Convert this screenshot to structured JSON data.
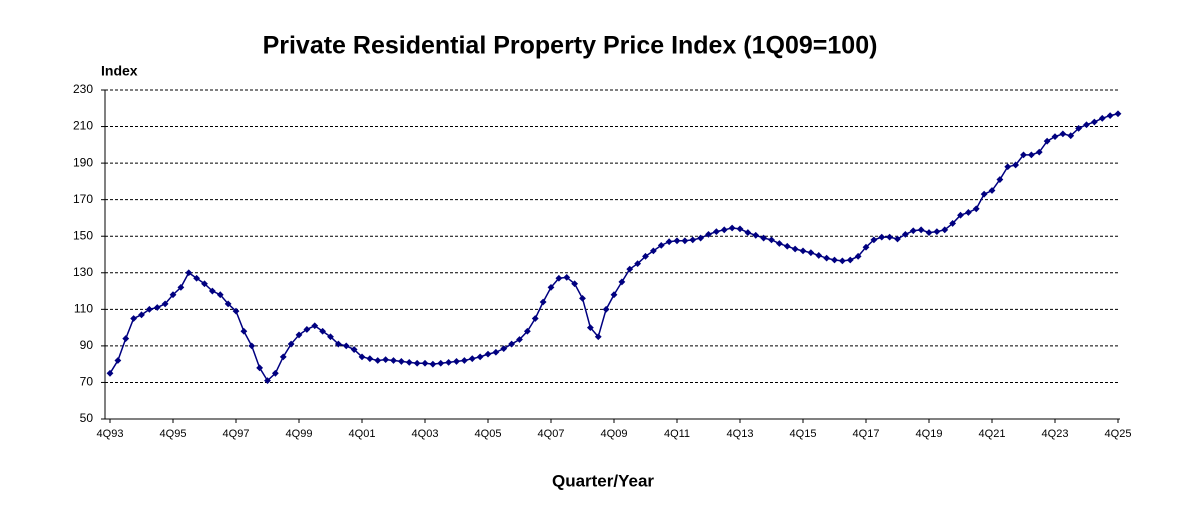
{
  "chart_data": {
    "type": "line",
    "title": "Private Residential Property Price Index (1Q09=100)",
    "y_label": "Index",
    "x_label": "Quarter/Year",
    "categories": [
      "4Q93",
      null,
      null,
      null,
      null,
      null,
      null,
      null,
      "4Q95",
      null,
      null,
      null,
      null,
      null,
      null,
      null,
      "4Q97",
      null,
      null,
      null,
      null,
      null,
      null,
      null,
      "4Q99",
      null,
      null,
      null,
      null,
      null,
      null,
      null,
      "4Q01",
      null,
      null,
      null,
      null,
      null,
      null,
      null,
      "4Q03",
      null,
      null,
      null,
      null,
      null,
      null,
      null,
      "4Q05",
      null,
      null,
      null,
      null,
      null,
      null,
      null,
      "4Q07",
      null,
      null,
      null,
      null,
      null,
      null,
      null,
      "4Q09",
      null,
      null,
      null,
      null,
      null,
      null,
      null,
      "4Q11",
      null,
      null,
      null,
      null,
      null,
      null,
      null,
      "4Q13",
      null,
      null,
      null,
      null,
      null,
      null,
      null,
      "4Q15",
      null,
      null,
      null,
      null,
      null,
      null,
      null,
      "4Q17",
      null,
      null,
      null,
      null,
      null,
      null,
      null,
      "4Q19",
      null,
      null,
      null,
      null,
      null,
      null,
      null,
      "4Q21",
      null,
      null,
      null,
      null,
      null,
      null,
      null,
      "4Q23",
      null,
      null,
      null,
      null,
      null,
      null,
      null,
      "4Q25"
    ],
    "series": [
      {
        "color": "#000080",
        "values": [
          75,
          82,
          94,
          105,
          107,
          110,
          111,
          113,
          118,
          122,
          130,
          127,
          124,
          120,
          118,
          113,
          109,
          98,
          90,
          78,
          71,
          75,
          84,
          91,
          96,
          99,
          101,
          98,
          95,
          91,
          90,
          88,
          84,
          83,
          82,
          82.5,
          82,
          81.5,
          81,
          80.5,
          80.5,
          80,
          80.5,
          81,
          81.5,
          82,
          83,
          84,
          85.5,
          86.5,
          88.5,
          91,
          93.5,
          98,
          105,
          114,
          122,
          127,
          127.5,
          124,
          116,
          100,
          95,
          110,
          118,
          125,
          132,
          135,
          139,
          142,
          145,
          147,
          147.5,
          147.5,
          148,
          149,
          151,
          152.5,
          153.5,
          154.5,
          154,
          152,
          150.5,
          149,
          148,
          146,
          144.5,
          143,
          142,
          141,
          139.5,
          138,
          137,
          136.5,
          137,
          139,
          144,
          148,
          149.5,
          149.5,
          148.5,
          151,
          153,
          153.5,
          152,
          152.5,
          153.5,
          157,
          161.5,
          163,
          165,
          173,
          175,
          181,
          188,
          189,
          194.5,
          194.5,
          196,
          202,
          204.5,
          206,
          205,
          209,
          211,
          212.5,
          214.5,
          216,
          217
        ]
      }
    ],
    "ylim": [
      50,
      230
    ],
    "yticks": [
      50,
      70,
      90,
      110,
      130,
      150,
      170,
      190,
      210,
      230
    ],
    "grid": true
  }
}
